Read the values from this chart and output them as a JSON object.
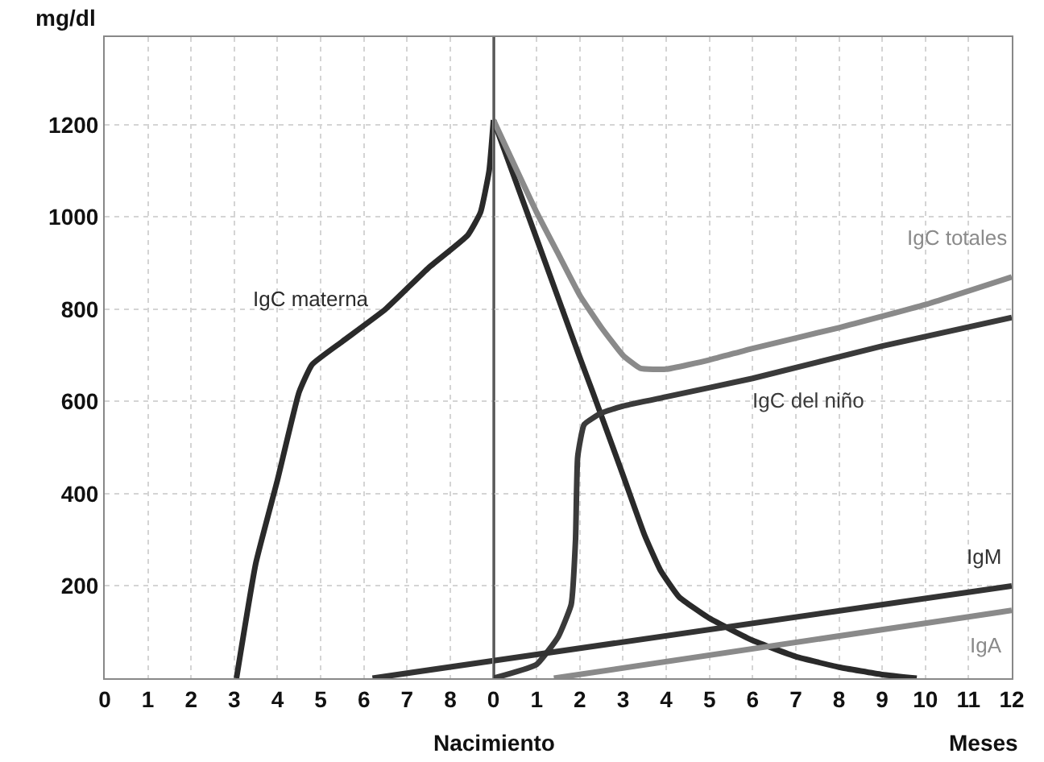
{
  "chart_data": [
    {
      "type": "line",
      "ylabel": "mg/dl",
      "series": [
        {
          "name": "IgC materna",
          "color": "#2a2a2a",
          "x": [
            3.05,
            3.5,
            4,
            4.5,
            4.8,
            5.5,
            6.5,
            7.5,
            8.4,
            8.7,
            8.9,
            9
          ],
          "values": [
            0,
            250,
            430,
            620,
            680,
            730,
            800,
            890,
            960,
            1010,
            1100,
            1210
          ]
        },
        {
          "color": "#333333",
          "x": [
            6.2,
            9
          ],
          "values": [
            0,
            38
          ]
        }
      ],
      "xlim": [
        0,
        9
      ],
      "ylim": [
        0,
        1390
      ],
      "xticks": [
        0,
        1,
        2,
        3,
        4,
        5,
        6,
        7,
        8
      ],
      "yticks": [
        200,
        400,
        600,
        800,
        1000,
        1200
      ],
      "grid": true,
      "legend": false,
      "marker": "none",
      "line_style": "solid"
    },
    {
      "type": "line",
      "xlabel": "Meses",
      "series": [
        {
          "color": "#2a2a2a",
          "x": [
            0,
            1,
            2,
            2.3,
            3,
            3.5,
            3.86,
            4.3,
            5,
            6,
            7,
            8,
            9,
            9.8
          ],
          "values": [
            1210,
            953,
            695,
            620,
            440,
            310,
            235,
            176,
            130,
            82,
            47,
            24,
            8,
            0
          ]
        },
        {
          "name": "IgC totales",
          "color": "#8a8a8a",
          "x": [
            0,
            1,
            1.5,
            2,
            2.5,
            3,
            3.4,
            4,
            5,
            6,
            8,
            10,
            12
          ],
          "values": [
            1210,
            1010,
            920,
            830,
            760,
            700,
            672,
            670,
            690,
            715,
            760,
            810,
            870
          ]
        },
        {
          "name": "IgC del niño",
          "color": "#3a3a3a",
          "x": [
            0,
            1,
            1.5,
            1.8,
            1.9,
            1.95,
            2.1,
            2.5,
            3,
            4,
            6,
            9,
            12
          ],
          "values": [
            0,
            30,
            90,
            160,
            300,
            480,
            550,
            575,
            590,
            610,
            650,
            720,
            782
          ]
        },
        {
          "name": "IgM",
          "color": "#333333",
          "x": [
            0,
            12
          ],
          "values": [
            38,
            200
          ]
        },
        {
          "name": "IgA",
          "color": "#8a8a8a",
          "x": [
            1.4,
            12
          ],
          "values": [
            0,
            147
          ]
        }
      ],
      "xlim": [
        0,
        12
      ],
      "ylim": [
        0,
        1390
      ],
      "xticks": [
        0,
        1,
        2,
        3,
        4,
        5,
        6,
        7,
        8,
        9,
        10,
        11,
        12
      ],
      "yticks": [
        200,
        400,
        600,
        800,
        1000,
        1200
      ],
      "tick_labels": "x",
      "ref_lines": [
        {
          "axis": "x",
          "value": 0,
          "label": "Nacimiento",
          "color": "#333333"
        }
      ],
      "grid": true,
      "legend": false,
      "marker": "none",
      "line_style": "solid"
    }
  ]
}
